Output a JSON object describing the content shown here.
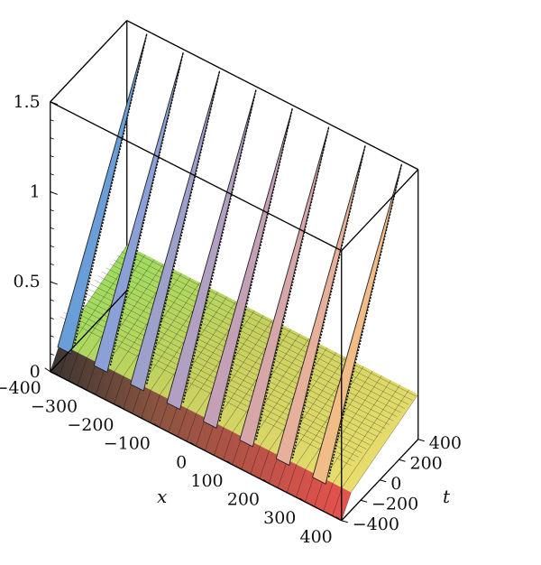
{
  "chart_data": {
    "type": "surface3d",
    "title": "",
    "xlabel": "x",
    "tlabel": "t",
    "zlabel": "",
    "xlim": [
      -400,
      400
    ],
    "tlim": [
      -400,
      400
    ],
    "zlim": [
      0,
      1.5
    ],
    "x_ticks": [
      "-400",
      "-300",
      "-200",
      "-100",
      "0",
      "100",
      "200",
      "300",
      "400"
    ],
    "t_ticks": [
      "400",
      "200",
      "0",
      "-200",
      "-400"
    ],
    "z_ticks": [
      "1.5",
      "1",
      "0.5",
      "0"
    ],
    "peaks": {
      "count": 8,
      "height": 1.5,
      "baseline": 0.25,
      "colors": [
        "#6a9ed8",
        "#8aa0d6",
        "#9ea0cc",
        "#b2a0c2",
        "#c4a0b6",
        "#d6a6a8",
        "#e6b09a",
        "#f2bc86"
      ]
    },
    "surface_colors": {
      "far_left": "#7ed957",
      "far_right": "#f0f070",
      "near_left": "#3a3a3a",
      "near_right": "#e8524e"
    },
    "grid": true,
    "box": true
  }
}
